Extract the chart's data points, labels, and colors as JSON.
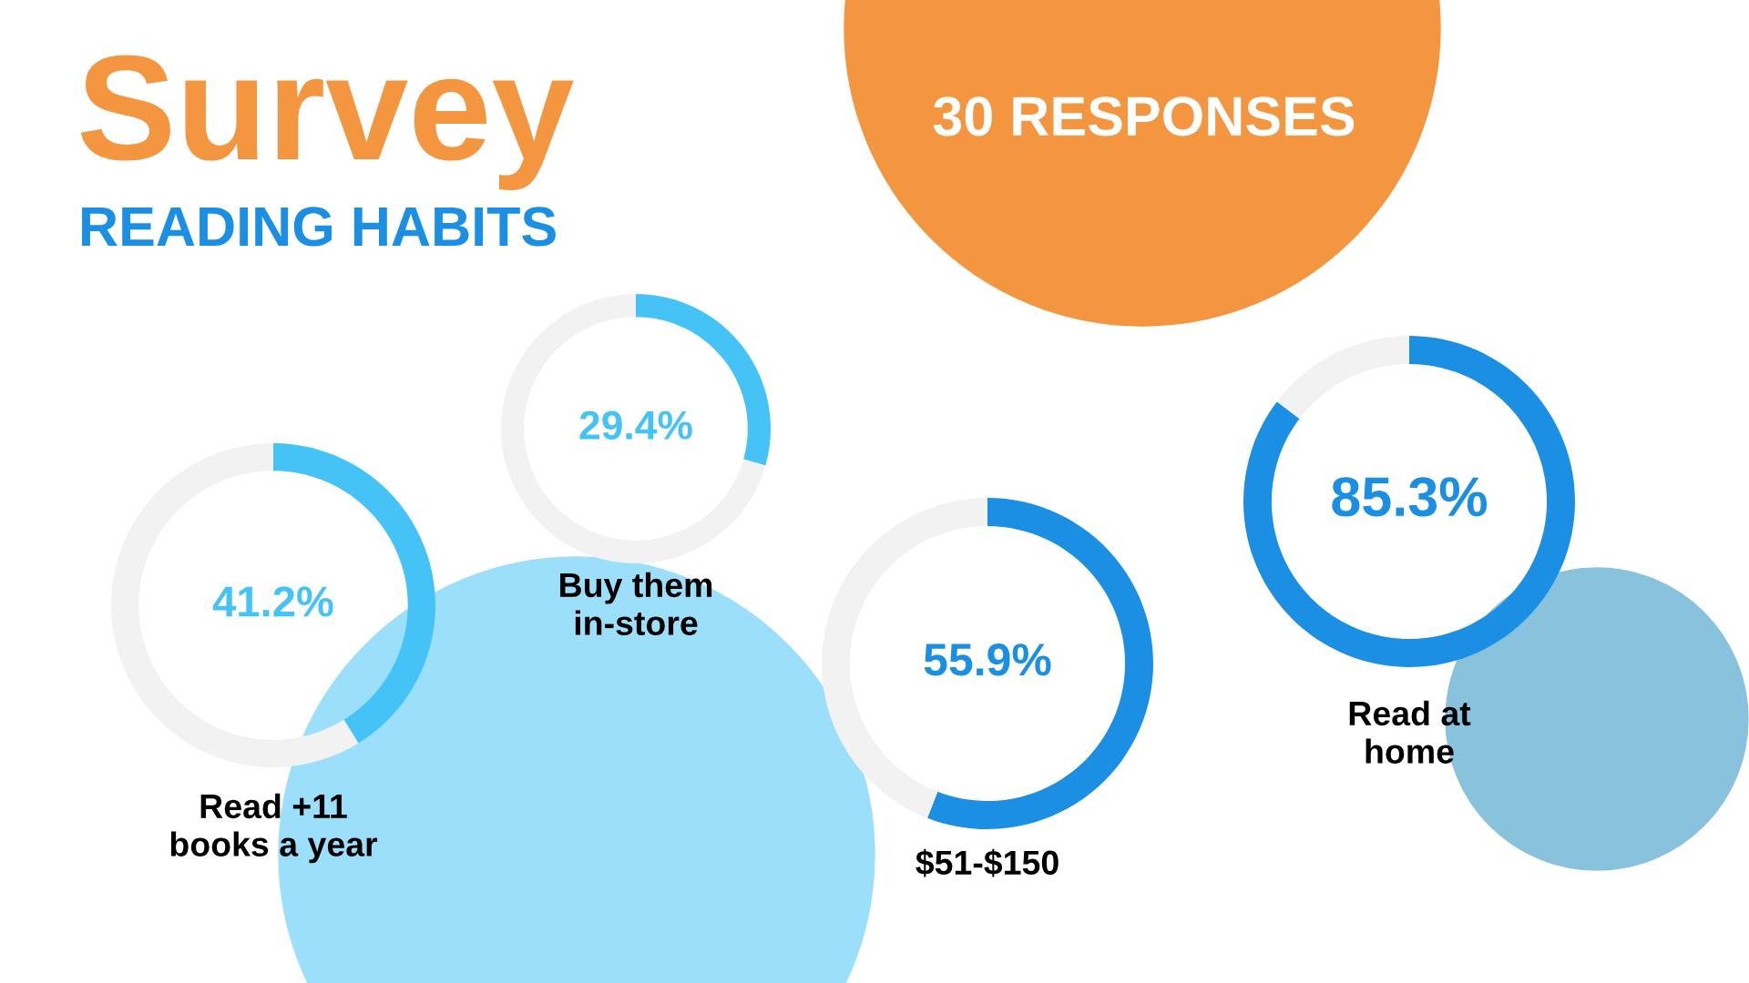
{
  "chart_data": [
    {
      "type": "other",
      "title": "Survey",
      "subtitle": "READING HABITS",
      "annotations": [
        "30 RESPONSES"
      ]
    },
    {
      "type": "donut",
      "title": "Read +11\nbooks a year",
      "categories": [
        null,
        null
      ],
      "values": [
        41.2,
        58.8
      ],
      "colors": [
        "#45c3f7",
        "#f2f2f2"
      ],
      "value_labels": [
        "41.2%",
        null
      ]
    },
    {
      "type": "donut",
      "title": "Buy them\nin-store",
      "categories": [
        null,
        null
      ],
      "values": [
        29.4,
        70.6
      ],
      "colors": [
        "#45c3f7",
        "#f2f2f2"
      ],
      "value_labels": [
        "29.4%",
        null
      ]
    },
    {
      "type": "donut",
      "title": "$51-$150",
      "categories": [
        null,
        null
      ],
      "values": [
        55.9,
        44.1
      ],
      "colors": [
        "#1a8fe3",
        "#f2f2f2"
      ],
      "value_labels": [
        "55.9%",
        null
      ]
    },
    {
      "type": "donut",
      "title": "Read at\nhome",
      "categories": [
        null,
        null
      ],
      "values": [
        85.3,
        14.7
      ],
      "colors": [
        "#1a8fe3",
        "#f2f2f2"
      ],
      "value_labels": [
        "85.3%",
        null
      ]
    }
  ]
}
